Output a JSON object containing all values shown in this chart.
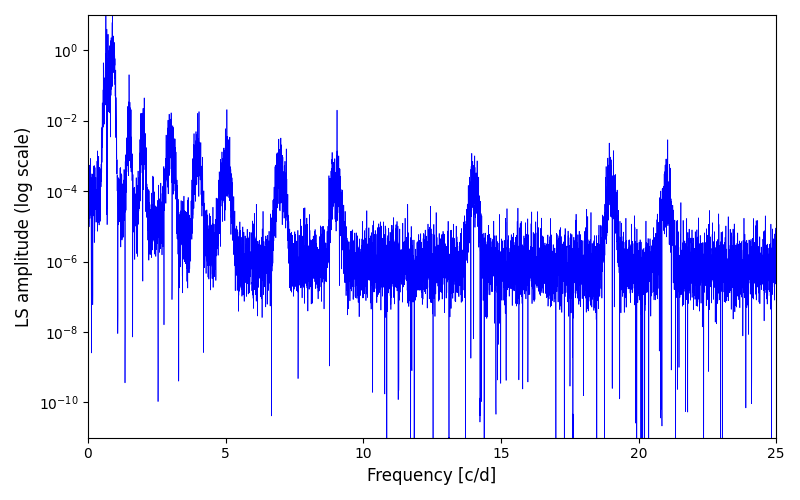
{
  "title": "",
  "xlabel": "Frequency [c/d]",
  "ylabel": "LS amplitude (log scale)",
  "line_color": "#0000FF",
  "xlim": [
    0,
    25
  ],
  "yscale": "log",
  "figsize": [
    8.0,
    5.0
  ],
  "dpi": 100,
  "seed": 42,
  "n_points": 8000,
  "peak_freq": 0.9,
  "peak_amplitude": 1.0,
  "baseline_low": -4.0,
  "baseline_high": -6.0,
  "noise_sigma": 1.2,
  "background_color": "#ffffff"
}
